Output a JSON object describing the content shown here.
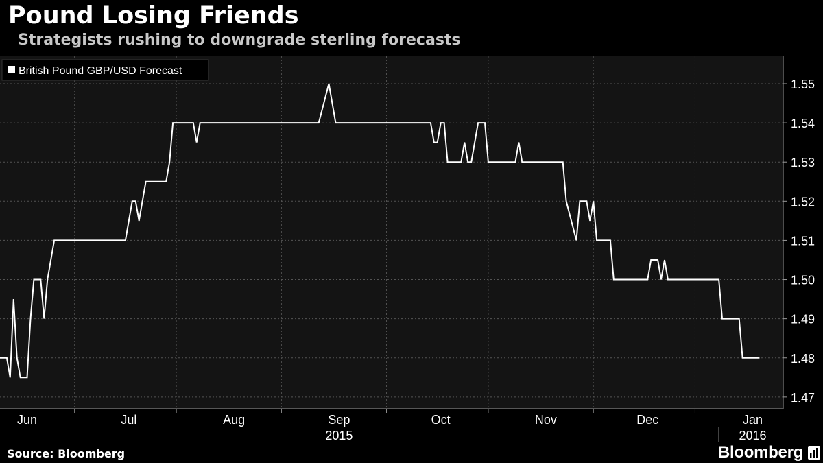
{
  "header": {
    "title": "Pound Losing Friends",
    "subtitle": "Strategists rushing to downgrade sterling forecasts"
  },
  "footer": {
    "source": "Source: Bloomberg",
    "brand": "Bloomberg",
    "brand_icon": "bar-chart-icon"
  },
  "colors": {
    "background": "#000000",
    "plot_background": "#141414",
    "line": "#ffffff",
    "grid": "#555555"
  },
  "chart_data": {
    "type": "line",
    "title": "Pound Losing Friends",
    "subtitle": "Strategists rushing to downgrade sterling forecasts",
    "legend": {
      "position": "top-left",
      "entries": [
        "British Pound GBP/USD Forecast"
      ]
    },
    "yaxis": {
      "side": "right",
      "ylim": [
        1.467,
        1.557
      ],
      "ticks": [
        "1.47",
        "1.48",
        "1.49",
        "1.50",
        "1.51",
        "1.52",
        "1.53",
        "1.54",
        "1.55"
      ]
    },
    "xaxis": {
      "xlim": [
        "2015-05-24",
        "2016-01-10"
      ],
      "month_labels": [
        {
          "label": "Jun",
          "date": "2015-06-01"
        },
        {
          "label": "Jul",
          "date": "2015-07-01"
        },
        {
          "label": "Aug",
          "date": "2015-08-01"
        },
        {
          "label": "Sep",
          "date": "2015-09-01"
        },
        {
          "label": "Oct",
          "date": "2015-10-01"
        },
        {
          "label": "Nov",
          "date": "2015-11-01"
        },
        {
          "label": "Dec",
          "date": "2015-12-01"
        },
        {
          "label": "Jan",
          "date": "2016-01-01"
        }
      ],
      "month_boundaries": [
        "2015-06-15",
        "2015-07-15",
        "2015-08-15",
        "2015-09-15",
        "2015-10-15",
        "2015-11-15",
        "2015-12-15"
      ],
      "year_labels": [
        {
          "label": "2015",
          "date": "2015-09-01"
        },
        {
          "label": "2016",
          "date": "2016-01-01"
        }
      ],
      "year_boundary": "2015-12-22"
    },
    "grid": true,
    "series": [
      {
        "name": "British Pound GBP/USD Forecast",
        "points": [
          [
            "2015-05-24",
            1.48
          ],
          [
            "2015-05-26",
            1.48
          ],
          [
            "2015-05-27",
            1.475
          ],
          [
            "2015-05-28",
            1.495
          ],
          [
            "2015-05-29",
            1.48
          ],
          [
            "2015-05-30",
            1.475
          ],
          [
            "2015-06-01",
            1.475
          ],
          [
            "2015-06-02",
            1.49
          ],
          [
            "2015-06-03",
            1.5
          ],
          [
            "2015-06-05",
            1.5
          ],
          [
            "2015-06-06",
            1.49
          ],
          [
            "2015-06-07",
            1.5
          ],
          [
            "2015-06-09",
            1.51
          ],
          [
            "2015-06-30",
            1.51
          ],
          [
            "2015-07-02",
            1.52
          ],
          [
            "2015-07-03",
            1.52
          ],
          [
            "2015-07-04",
            1.515
          ],
          [
            "2015-07-06",
            1.525
          ],
          [
            "2015-07-12",
            1.525
          ],
          [
            "2015-07-13",
            1.53
          ],
          [
            "2015-07-14",
            1.54
          ],
          [
            "2015-07-20",
            1.54
          ],
          [
            "2015-07-21",
            1.535
          ],
          [
            "2015-07-22",
            1.54
          ],
          [
            "2015-08-26",
            1.54
          ],
          [
            "2015-08-29",
            1.55
          ],
          [
            "2015-08-31",
            1.54
          ],
          [
            "2015-09-28",
            1.54
          ],
          [
            "2015-09-29",
            1.535
          ],
          [
            "2015-09-30",
            1.535
          ],
          [
            "2015-10-01",
            1.54
          ],
          [
            "2015-10-02",
            1.54
          ],
          [
            "2015-10-03",
            1.53
          ],
          [
            "2015-10-07",
            1.53
          ],
          [
            "2015-10-08",
            1.535
          ],
          [
            "2015-10-09",
            1.53
          ],
          [
            "2015-10-10",
            1.53
          ],
          [
            "2015-10-12",
            1.54
          ],
          [
            "2015-10-14",
            1.54
          ],
          [
            "2015-10-15",
            1.53
          ],
          [
            "2015-10-23",
            1.53
          ],
          [
            "2015-10-24",
            1.535
          ],
          [
            "2015-10-25",
            1.53
          ],
          [
            "2015-11-06",
            1.53
          ],
          [
            "2015-11-07",
            1.52
          ],
          [
            "2015-11-10",
            1.51
          ],
          [
            "2015-11-11",
            1.52
          ],
          [
            "2015-11-13",
            1.52
          ],
          [
            "2015-11-14",
            1.515
          ],
          [
            "2015-11-15",
            1.52
          ],
          [
            "2015-11-16",
            1.51
          ],
          [
            "2015-11-20",
            1.51
          ],
          [
            "2015-11-21",
            1.5
          ],
          [
            "2015-12-01",
            1.5
          ],
          [
            "2015-12-02",
            1.505
          ],
          [
            "2015-12-04",
            1.505
          ],
          [
            "2015-12-05",
            1.5
          ],
          [
            "2015-12-06",
            1.505
          ],
          [
            "2015-12-07",
            1.5
          ],
          [
            "2015-12-22",
            1.5
          ],
          [
            "2015-12-23",
            1.49
          ],
          [
            "2015-12-28",
            1.49
          ],
          [
            "2015-12-29",
            1.48
          ],
          [
            "2016-01-03",
            1.48
          ]
        ]
      }
    ]
  }
}
